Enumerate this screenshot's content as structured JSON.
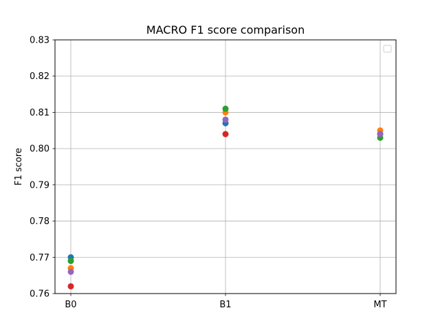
{
  "chart_data": {
    "type": "scatter",
    "title": "MACRO F1 score comparison",
    "xlabel": "",
    "ylabel": "F1 score",
    "categories": [
      "B0",
      "B1",
      "MT"
    ],
    "ylim": [
      0.76,
      0.83
    ],
    "yticks": [
      "0.76",
      "0.77",
      "0.78",
      "0.79",
      "0.80",
      "0.81",
      "0.82",
      "0.83"
    ],
    "grid": true,
    "legend": {
      "placement": "top-right",
      "entries": []
    },
    "series": [
      {
        "color": "#1f77b4",
        "values": [
          0.77,
          0.807,
          0.804
        ]
      },
      {
        "color": "#ff7f0e",
        "values": [
          0.767,
          0.81,
          0.805
        ]
      },
      {
        "color": "#2ca02c",
        "values": [
          0.769,
          0.811,
          0.803
        ]
      },
      {
        "color": "#d62728",
        "values": [
          0.762,
          0.804,
          0.804
        ]
      },
      {
        "color": "#9467bd",
        "values": [
          0.766,
          0.808,
          0.804
        ]
      }
    ]
  }
}
